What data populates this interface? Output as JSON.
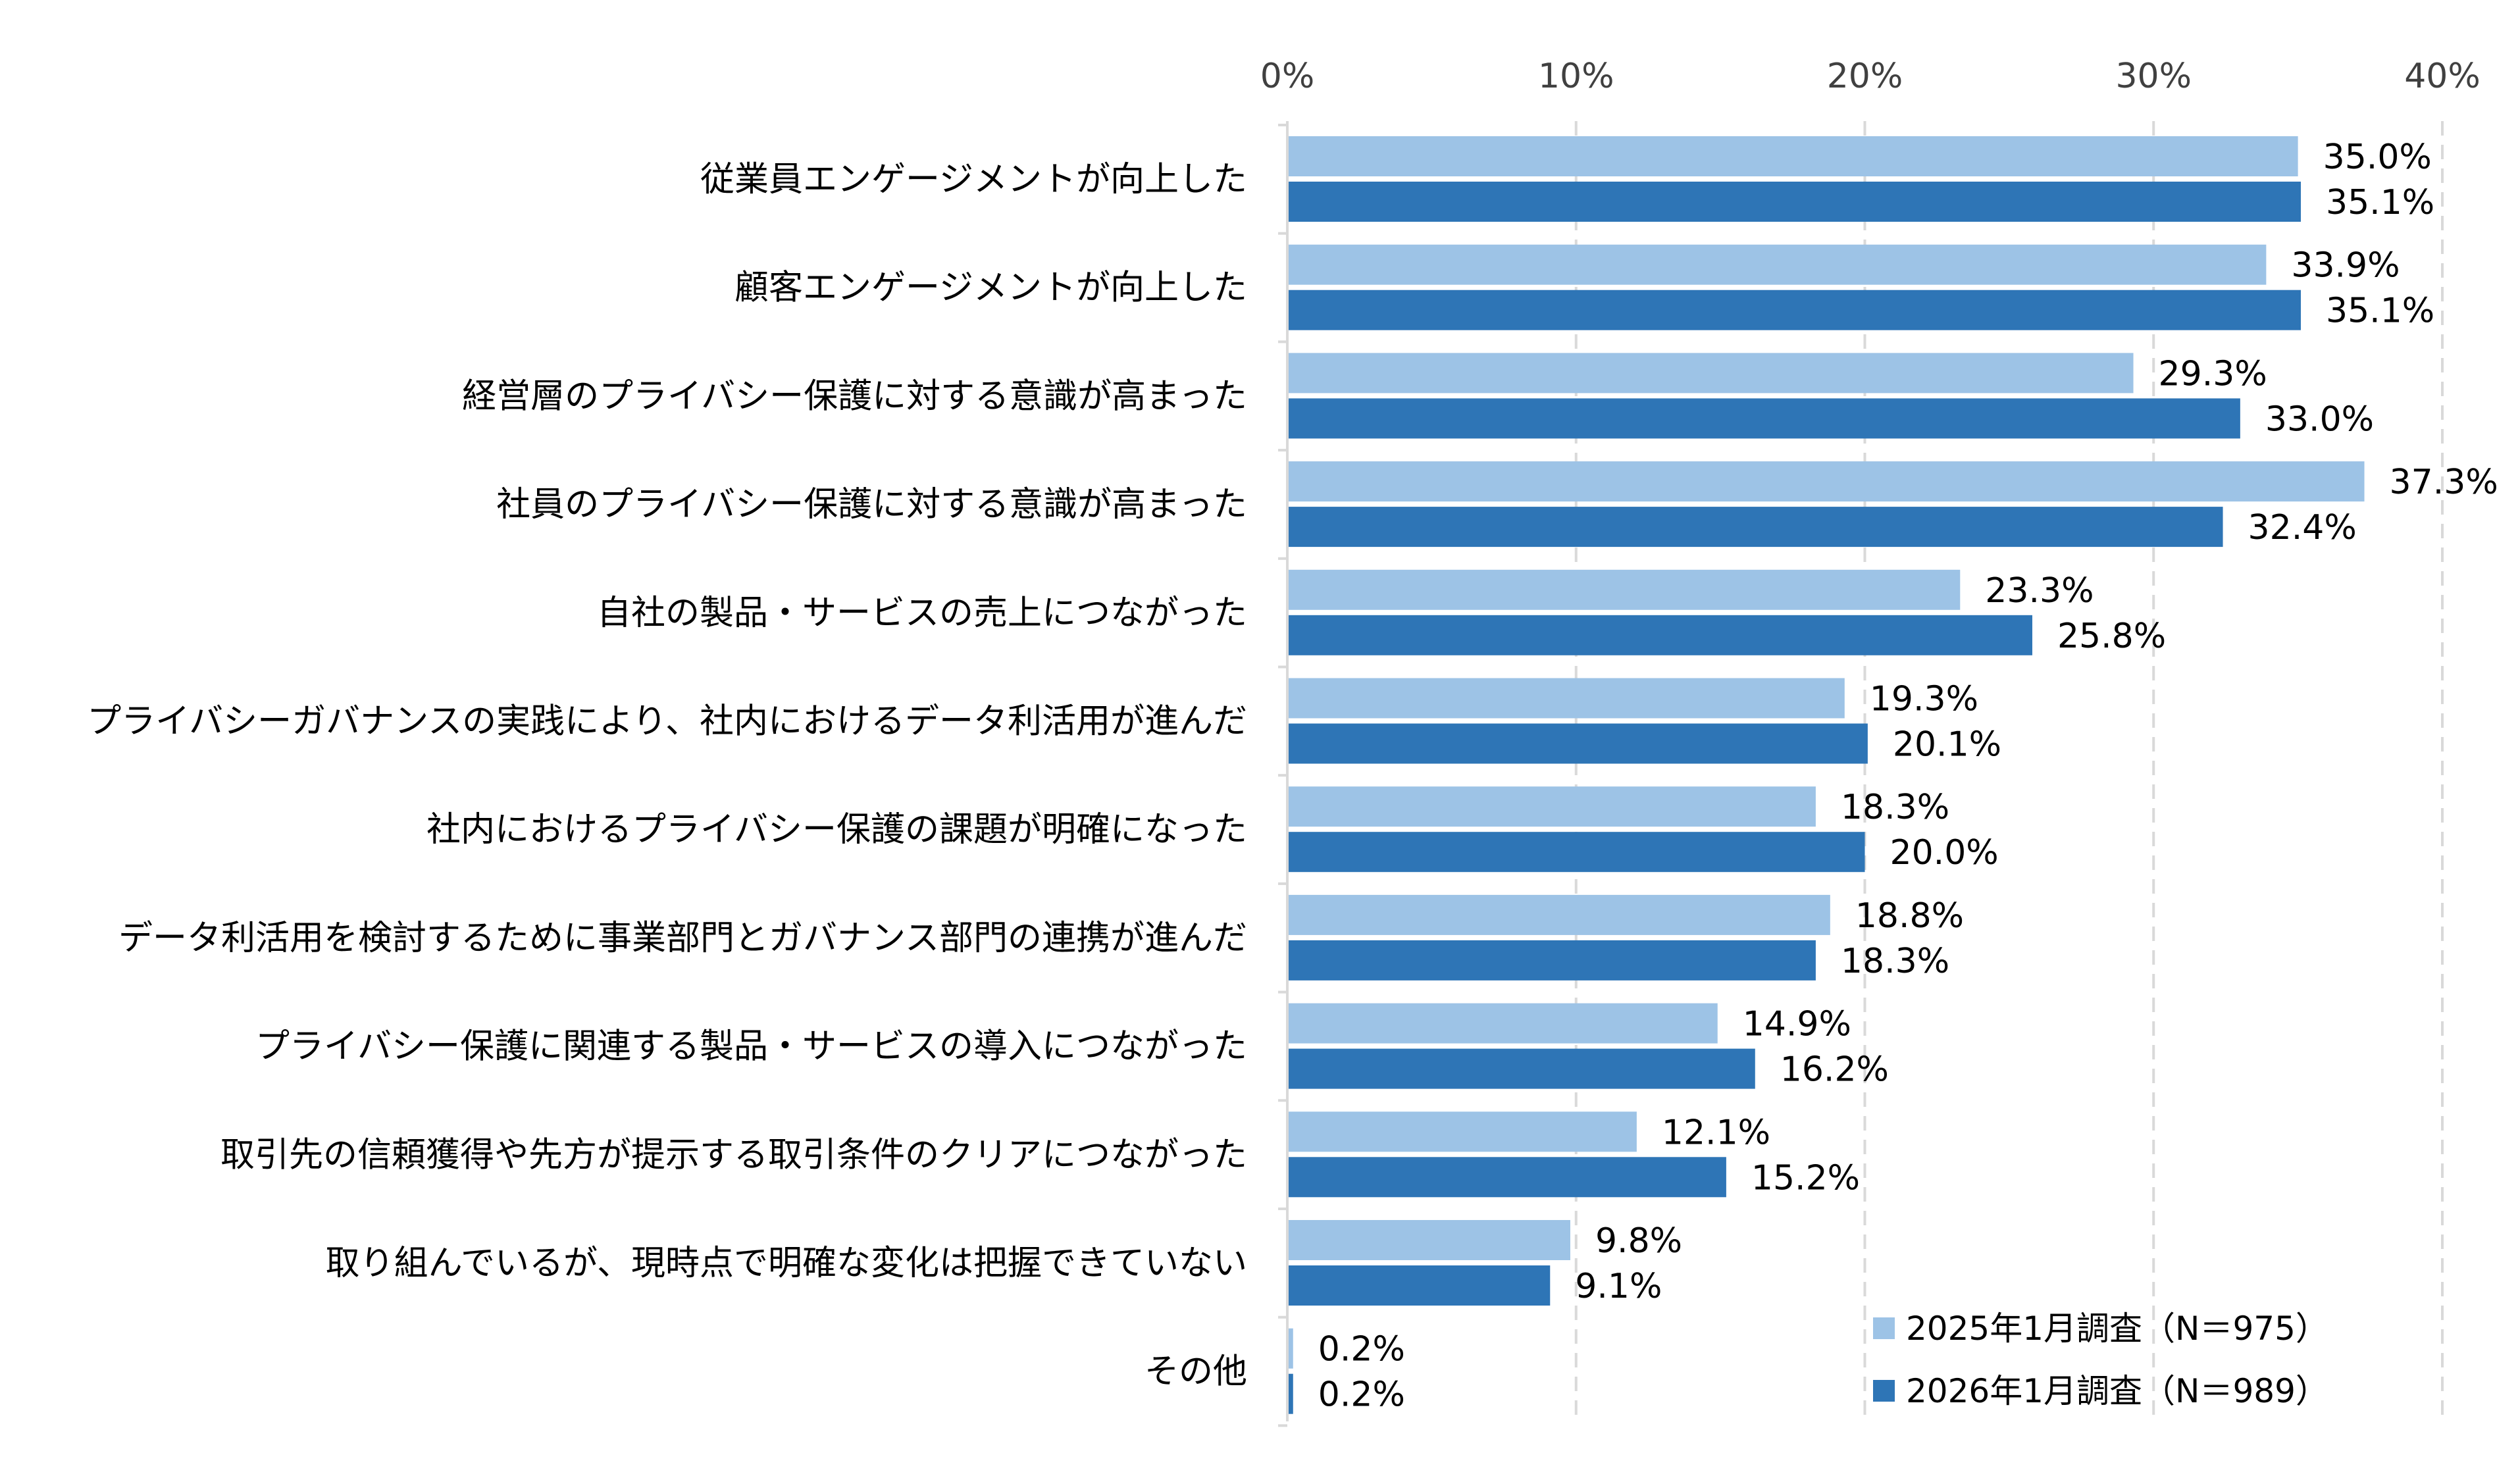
{
  "chart_data": {
    "type": "bar",
    "orientation": "horizontal",
    "categories": [
      "従業員エンゲージメントが向上した",
      "顧客エンゲージメントが向上した",
      "経営層のプライバシー保護に対する意識が高まった",
      "社員のプライバシー保護に対する意識が高まった",
      "自社の製品・サービスの売上につながった",
      "プライバシーガバナンスの実践により、社内におけるデータ利活用が進んだ",
      "社内におけるプライバシー保護の課題が明確になった",
      "データ利活用を検討するために事業部門とガバナンス部門の連携が進んだ",
      "プライバシー保護に関連する製品・サービスの導入につながった",
      "取引先の信頼獲得や先方が提示する取引条件のクリアにつながった",
      "取り組んでいるが、現時点で明確な変化は把握できていない",
      "その他"
    ],
    "series": [
      {
        "name": "2025年1月調査（N＝975）",
        "color": "#9DC3E6",
        "values": [
          35.0,
          33.9,
          29.3,
          37.3,
          23.3,
          19.3,
          18.3,
          18.8,
          14.9,
          12.1,
          9.8,
          0.2
        ],
        "labels": [
          "35.0%",
          "33.9%",
          "29.3%",
          "37.3%",
          "23.3%",
          "19.3%",
          "18.3%",
          "18.8%",
          "14.9%",
          "12.1%",
          "9.8%",
          "0.2%"
        ]
      },
      {
        "name": "2026年1月調査（N＝989）",
        "color": "#2E75B6",
        "values": [
          35.1,
          35.1,
          33.0,
          32.4,
          25.8,
          20.1,
          20.0,
          18.3,
          16.2,
          15.2,
          9.1,
          0.2
        ],
        "labels": [
          "35.1%",
          "35.1%",
          "33.0%",
          "32.4%",
          "25.8%",
          "20.1%",
          "20.0%",
          "18.3%",
          "16.2%",
          "15.2%",
          "9.1%",
          "0.2%"
        ]
      }
    ],
    "xlim": [
      0,
      40
    ],
    "xticks": [
      0,
      10,
      20,
      30,
      40
    ],
    "xtick_labels": [
      "0%",
      "10%",
      "20%",
      "30%",
      "40%"
    ],
    "xaxis_position": "top",
    "grid": "vertical dashed",
    "legend_position": "bottom-right",
    "title": "",
    "xlabel": "",
    "ylabel": ""
  }
}
